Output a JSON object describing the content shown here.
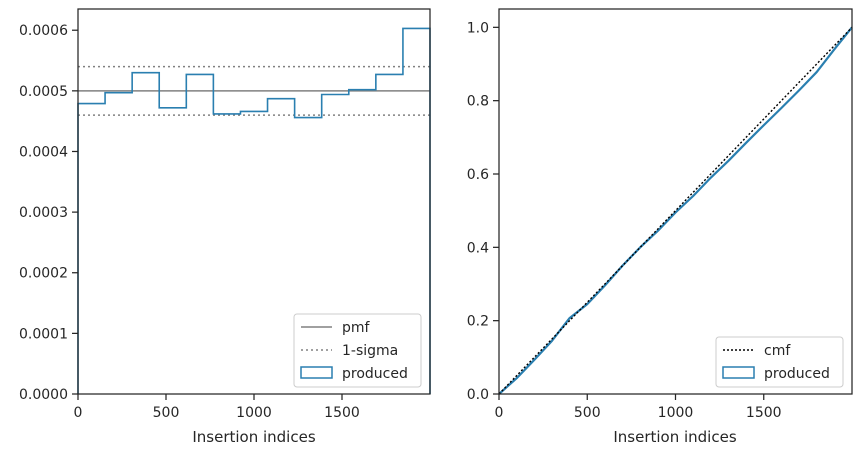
{
  "chart_data": [
    {
      "type": "step",
      "xlabel": "Insertion indices",
      "ylabel": "",
      "xlim": [
        0,
        2000
      ],
      "ylim": [
        0,
        0.000635
      ],
      "xticks": [
        0,
        500,
        1000,
        1500
      ],
      "xtick_labels": [
        "0",
        "500",
        "1000",
        "1500"
      ],
      "yticks": [
        0,
        0.0001,
        0.0002,
        0.0003,
        0.0004,
        0.0005,
        0.0006
      ],
      "ytick_labels": [
        "0.0000",
        "0.0001",
        "0.0002",
        "0.0003",
        "0.0004",
        "0.0005",
        "0.0006"
      ],
      "pmf": 0.0005,
      "sigma_band": [
        0.00046,
        0.00054
      ],
      "histogram": {
        "bin_edges": [
          0,
          153.8,
          307.7,
          461.5,
          615.4,
          769.2,
          923.1,
          1076.9,
          1230.8,
          1384.6,
          1538.5,
          1692.3,
          1846.2,
          2000
        ],
        "values": [
          0.000479,
          0.000497,
          0.00053,
          0.000472,
          0.000527,
          0.000462,
          0.000466,
          0.000487,
          0.000456,
          0.000494,
          0.000502,
          0.000527,
          0.000603
        ]
      },
      "legend": {
        "position": "lower-right",
        "entries": [
          {
            "label": "pmf",
            "style": "solid-gray"
          },
          {
            "label": "1-sigma",
            "style": "dotted-gray"
          },
          {
            "label": "produced",
            "style": "blue-box"
          }
        ]
      }
    },
    {
      "type": "line",
      "xlabel": "Insertion indices",
      "ylabel": "",
      "xlim": [
        0,
        2000
      ],
      "ylim": [
        0,
        1.05
      ],
      "xticks": [
        0,
        500,
        1000,
        1500
      ],
      "xtick_labels": [
        "0",
        "500",
        "1000",
        "1500"
      ],
      "yticks": [
        0,
        0.2,
        0.4,
        0.6,
        0.8,
        1.0
      ],
      "ytick_labels": [
        "0.0",
        "0.2",
        "0.4",
        "0.6",
        "0.8",
        "1.0"
      ],
      "cmf": {
        "x": [
          0,
          2000
        ],
        "y": [
          0,
          1
        ]
      },
      "produced": {
        "x": [
          0,
          100,
          200,
          300,
          400,
          500,
          600,
          700,
          800,
          900,
          1000,
          1100,
          1200,
          1300,
          1400,
          1500,
          1600,
          1700,
          1800,
          1900,
          2000
        ],
        "y": [
          0,
          0.043,
          0.093,
          0.145,
          0.207,
          0.245,
          0.296,
          0.35,
          0.4,
          0.445,
          0.495,
          0.54,
          0.59,
          0.636,
          0.685,
          0.733,
          0.78,
          0.828,
          0.878,
          0.94,
          1.0
        ]
      },
      "legend": {
        "position": "lower-right",
        "entries": [
          {
            "label": "cmf",
            "style": "dotted-black"
          },
          {
            "label": "produced",
            "style": "blue-box"
          }
        ]
      }
    }
  ],
  "colors": {
    "produced": "#2a7fb0",
    "pmf": "#808080",
    "sigma": "#808080",
    "cmf": "#000000",
    "axis": "#262626"
  }
}
